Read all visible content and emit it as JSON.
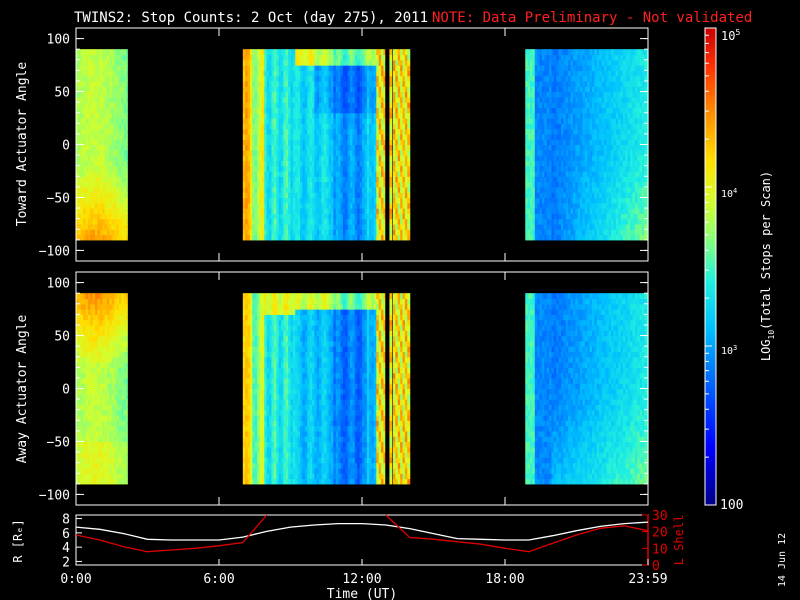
{
  "header": {
    "title": "TWINS2: Stop Counts:  2 Oct (day 275), 2011",
    "note": "NOTE: Data Preliminary - Not validated",
    "note_color": "#ff2020"
  },
  "side_stamp": "14 Jun 12",
  "chart_data": [
    {
      "type": "heatmap",
      "ylabel": "Toward Actuator Angle",
      "ylim": [
        -110,
        110
      ],
      "yticks": [
        "100",
        "50",
        "0",
        "−50",
        "−100"
      ],
      "ytick_values": [
        100,
        50,
        0,
        -50,
        -100
      ],
      "x_range_hours": [
        0,
        24
      ],
      "y_data_range": [
        -90,
        90
      ],
      "data_blocks_hours": [
        [
          0.0,
          2.15
        ],
        [
          7.0,
          12.95
        ],
        [
          13.15,
          13.25
        ],
        [
          13.3,
          14.0
        ],
        [
          18.85,
          24.0
        ]
      ],
      "colorscale": "rainbow, log10 counts"
    },
    {
      "type": "heatmap",
      "ylabel": "Away Actuator Angle",
      "ylim": [
        -110,
        110
      ],
      "yticks": [
        "100",
        "50",
        "0",
        "−50",
        "−100"
      ],
      "ytick_values": [
        100,
        50,
        0,
        -50,
        -100
      ],
      "x_range_hours": [
        0,
        24
      ],
      "y_data_range": [
        -90,
        90
      ],
      "data_blocks_hours": [
        [
          0.0,
          2.15
        ],
        [
          7.0,
          12.95
        ],
        [
          13.15,
          13.25
        ],
        [
          13.3,
          14.0
        ],
        [
          18.85,
          24.0
        ]
      ],
      "colorscale": "rainbow, log10 counts"
    },
    {
      "type": "line",
      "ylabel_left": "R [Rₑ]",
      "ylabel_right": "L Shell",
      "ylim_left": [
        1.5,
        8.5
      ],
      "ylim_right": [
        0,
        30
      ],
      "yticks_left": [
        "8",
        "6",
        "4",
        "2"
      ],
      "ytick_values_left": [
        8,
        6,
        4,
        2
      ],
      "yticks_right": [
        "30",
        "20",
        "10",
        "0"
      ],
      "ytick_values_right": [
        30,
        20,
        10,
        0
      ],
      "right_axis_color": "#e00000",
      "x": [
        0,
        1,
        2,
        3,
        4,
        5,
        6,
        7,
        8,
        9,
        10,
        11,
        12,
        13,
        14,
        15,
        16,
        17,
        18,
        19,
        20,
        21,
        22,
        23,
        24
      ],
      "series": [
        {
          "name": "R",
          "color": "#ffffff",
          "values": [
            6.8,
            6.5,
            5.9,
            5.1,
            5.0,
            5.0,
            5.0,
            5.4,
            6.2,
            6.8,
            7.1,
            7.3,
            7.3,
            7.1,
            6.6,
            5.9,
            5.2,
            5.1,
            5.0,
            5.0,
            5.6,
            6.3,
            6.9,
            7.3,
            7.5
          ]
        },
        {
          "name": "L Shell",
          "color": "#e00000",
          "values": [
            18.0,
            15.0,
            11.0,
            8.0,
            9.0,
            10.0,
            11.5,
            13.5,
            30.0,
            null,
            null,
            null,
            null,
            30.0,
            16.5,
            15.5,
            14.0,
            12.5,
            10.0,
            8.0,
            13.0,
            18.0,
            22.0,
            23.5,
            20.5
          ]
        }
      ]
    }
  ],
  "xaxis": {
    "ticks": [
      "0:00",
      "6:00",
      "12:00",
      "18:00",
      "23:59"
    ],
    "tick_values": [
      0,
      6,
      12,
      18,
      24
    ],
    "label": "Time (UT)"
  },
  "colorbar": {
    "label_prefix": "LOG",
    "label_sub": "10",
    "label_suffix": "(Total Stops per Scan)",
    "top_base": "10",
    "top_exp": "5",
    "mid_base": "10",
    "mid_exp": "4",
    "low_base": "10",
    "low_exp": "3",
    "bottom": "100",
    "levels": [
      5,
      4,
      3,
      2
    ]
  }
}
